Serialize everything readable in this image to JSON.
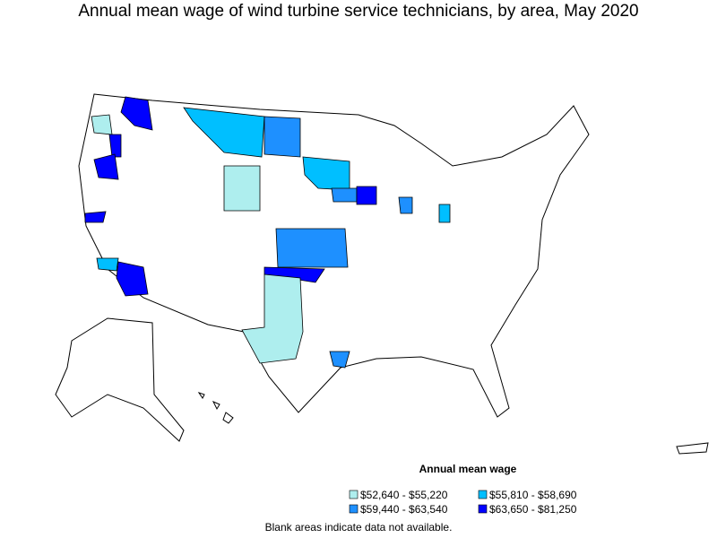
{
  "title": "Annual mean wage of wind turbine service technicians, by area, May 2020",
  "legend": {
    "title": "Annual mean wage",
    "items": [
      {
        "label": "$52,640 - $55,220",
        "color": "#aeeeee"
      },
      {
        "label": "$55,810 - $58,690",
        "color": "#00bfff"
      },
      {
        "label": "$59,440 - $63,540",
        "color": "#1e90ff"
      },
      {
        "label": "$63,650 - $81,250",
        "color": "#0000ff"
      }
    ]
  },
  "note": "Blank areas indicate data not available."
}
